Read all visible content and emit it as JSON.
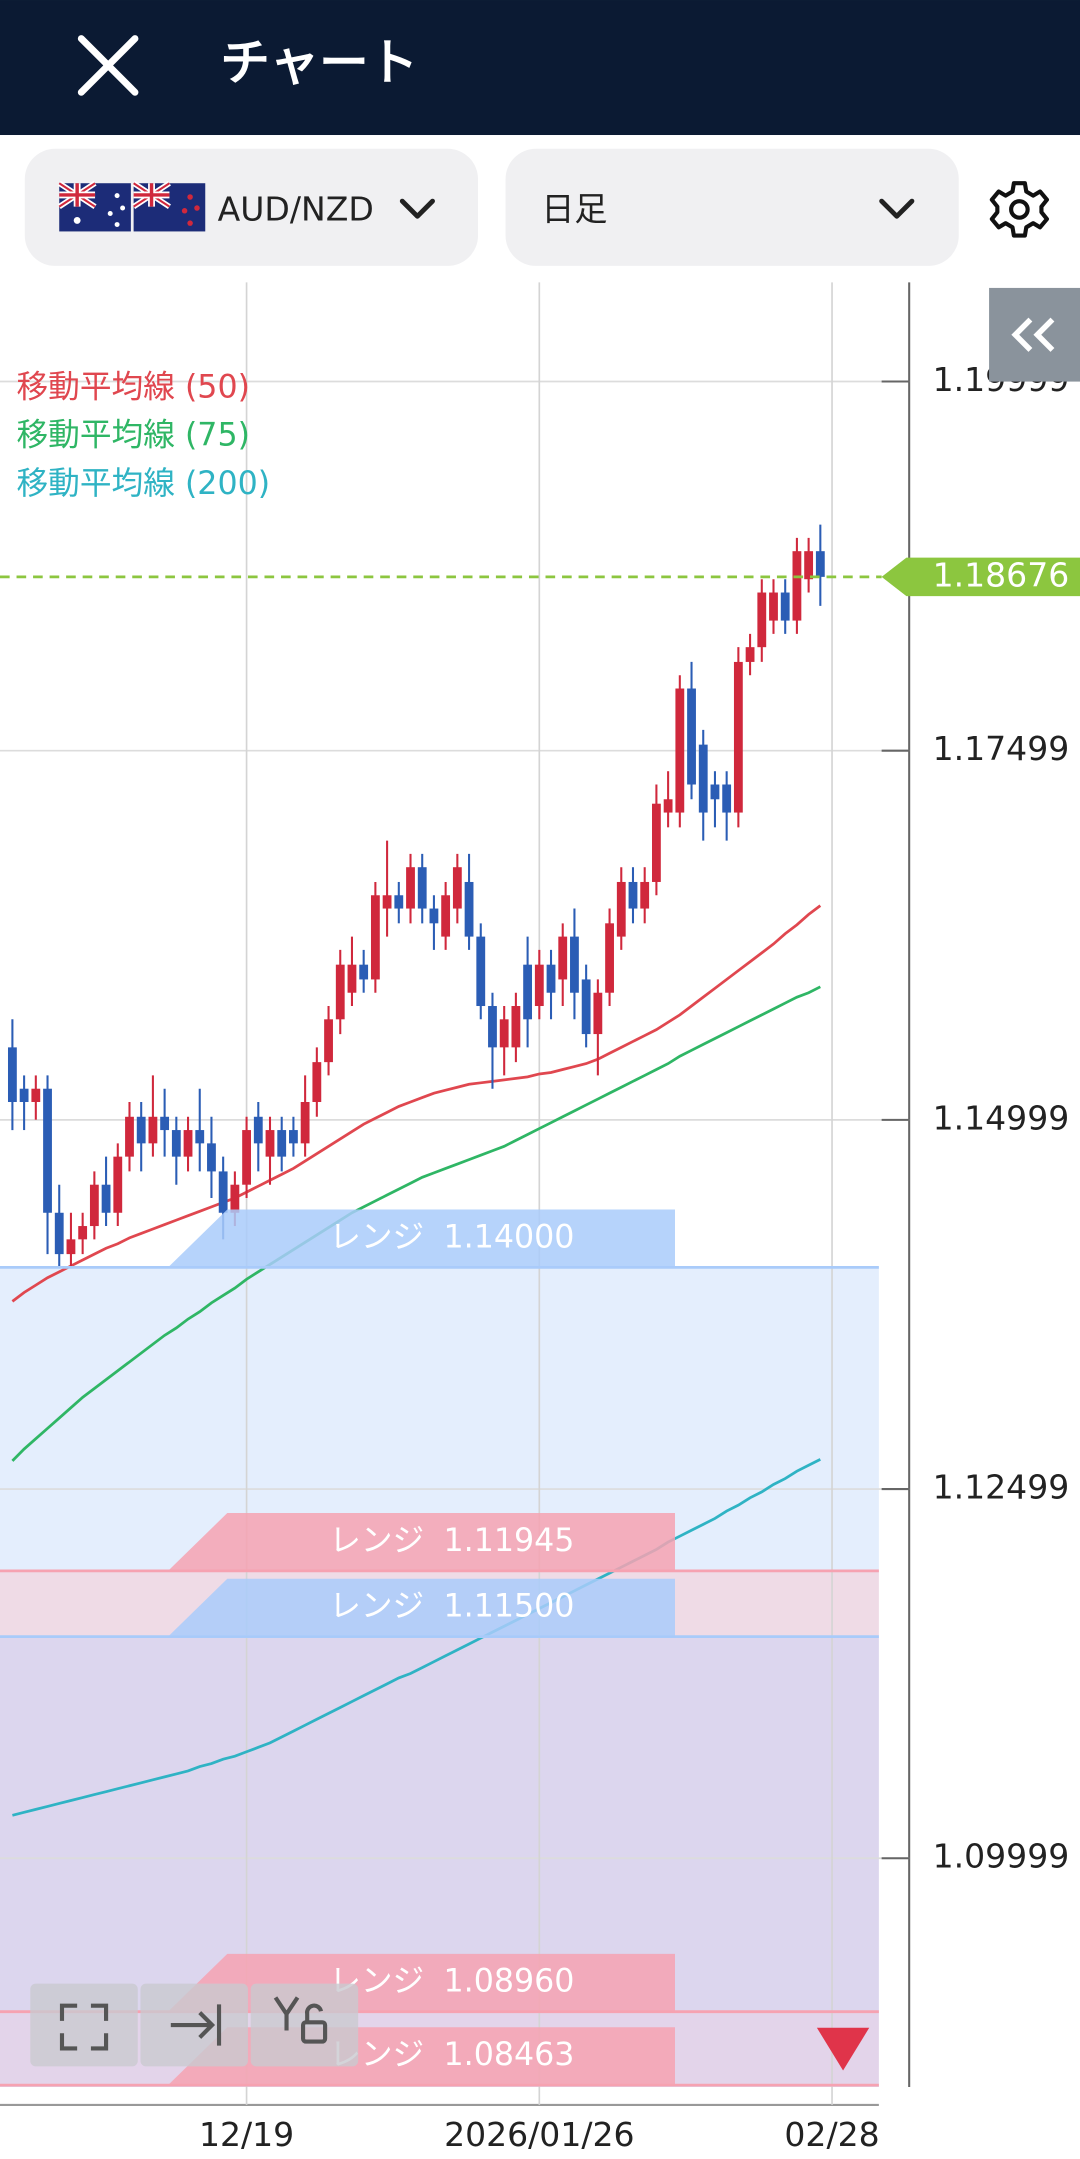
{
  "header": {
    "title": "チャート"
  },
  "toolbar": {
    "symbol": "AUD/NZD",
    "timeframe": "日足"
  },
  "chart_data": {
    "type": "candlestick",
    "categories": [
      null,
      null,
      null,
      null,
      null,
      null,
      null,
      null,
      null,
      null,
      null,
      null,
      null,
      null,
      null,
      null,
      null,
      null,
      null,
      null,
      "12/19",
      null,
      null,
      null,
      null,
      null,
      null,
      null,
      null,
      null,
      null,
      null,
      null,
      null,
      null,
      null,
      null,
      null,
      null,
      null,
      null,
      null,
      null,
      null,
      null,
      "2026/01/26",
      null,
      null,
      null,
      null,
      null,
      null,
      null,
      null,
      null,
      null,
      null,
      null,
      null,
      null,
      null,
      null,
      null,
      null,
      null,
      null,
      null,
      null,
      null,
      null,
      "02/28"
    ],
    "candles": {
      "up_color": "#d0283c",
      "down_color": "#2b5db5",
      "open": [
        1.1549,
        1.1521,
        1.1512,
        1.1521,
        1.1437,
        1.1409,
        1.1419,
        1.1428,
        1.1456,
        1.1437,
        1.1475,
        1.1502,
        1.1484,
        1.1502,
        1.1493,
        1.1475,
        1.1493,
        1.1484,
        1.1465,
        1.1437,
        1.1456,
        1.1502,
        1.1475,
        1.1493,
        1.1493,
        1.1484,
        1.1512,
        1.1539,
        1.1568,
        1.1586,
        1.1605,
        1.1595,
        1.1643,
        1.1652,
        1.1643,
        1.1671,
        1.1643,
        1.1624,
        1.1643,
        1.1661,
        1.1624,
        1.1577,
        1.1549,
        1.1549,
        1.1605,
        1.1577,
        1.1605,
        1.1595,
        1.1624,
        1.1595,
        1.1558,
        1.1586,
        1.1624,
        1.1661,
        1.1643,
        1.1661,
        1.1708,
        1.1708,
        1.1792,
        1.1754,
        1.1727,
        1.1727,
        1.1708,
        1.181,
        1.182,
        1.1838,
        1.1857,
        1.1838,
        1.1866,
        1.1885,
        null
      ],
      "high": [
        1.1568,
        1.153,
        1.153,
        1.153,
        1.1456,
        1.1437,
        1.1437,
        1.1465,
        1.1475,
        1.1484,
        1.1512,
        1.1512,
        1.153,
        1.1521,
        1.1502,
        1.1502,
        1.1521,
        1.1502,
        1.1475,
        1.1465,
        1.1502,
        1.1512,
        1.1502,
        1.1502,
        1.1502,
        1.153,
        1.1549,
        1.1577,
        1.1615,
        1.1624,
        1.1615,
        1.1661,
        1.1689,
        1.1661,
        1.168,
        1.168,
        1.1652,
        1.1661,
        1.168,
        1.168,
        1.1633,
        1.1586,
        1.1577,
        1.1586,
        1.1624,
        1.1615,
        1.1615,
        1.1633,
        1.1643,
        1.1605,
        1.1595,
        1.1643,
        1.1671,
        1.1671,
        1.1671,
        1.1727,
        1.1736,
        1.1801,
        1.181,
        1.1764,
        1.1736,
        1.1736,
        1.182,
        1.1829,
        1.1866,
        1.1866,
        1.1866,
        1.1894,
        1.1894,
        1.1903,
        null
      ],
      "low": [
        1.1493,
        1.1493,
        1.15,
        1.1409,
        1.14,
        1.14,
        1.1409,
        1.1419,
        1.1428,
        1.1428,
        1.1465,
        1.1465,
        1.1475,
        1.1475,
        1.1456,
        1.1465,
        1.1465,
        1.1447,
        1.1419,
        1.1428,
        1.1447,
        1.1465,
        1.1456,
        1.1465,
        1.1475,
        1.1475,
        1.1502,
        1.153,
        1.1558,
        1.1577,
        1.1586,
        1.1586,
        1.1624,
        1.1633,
        1.1633,
        1.1633,
        1.1615,
        1.1615,
        1.1633,
        1.1615,
        1.1568,
        1.1521,
        1.153,
        1.1539,
        1.1549,
        1.1568,
        1.1568,
        1.1577,
        1.1568,
        1.1549,
        1.153,
        1.1577,
        1.1615,
        1.1633,
        1.1633,
        1.1652,
        1.1698,
        1.1698,
        1.1717,
        1.1689,
        1.1698,
        1.1689,
        1.1698,
        1.1801,
        1.181,
        1.1829,
        1.1829,
        1.1829,
        1.1857,
        1.1848,
        null
      ],
      "close": [
        1.1512,
        1.1512,
        1.1521,
        1.1437,
        1.1409,
        1.1419,
        1.1428,
        1.1456,
        1.1437,
        1.1475,
        1.1502,
        1.1484,
        1.1502,
        1.1493,
        1.1475,
        1.1493,
        1.1484,
        1.1465,
        1.1437,
        1.1456,
        1.1493,
        1.1484,
        1.1493,
        1.1475,
        1.1484,
        1.1512,
        1.1539,
        1.1568,
        1.1605,
        1.1605,
        1.1595,
        1.1652,
        1.1652,
        1.1643,
        1.1671,
        1.1643,
        1.1633,
        1.1652,
        1.1671,
        1.1624,
        1.1577,
        1.1549,
        1.1568,
        1.1577,
        1.1568,
        1.1605,
        1.1586,
        1.1624,
        1.1586,
        1.1558,
        1.1586,
        1.1633,
        1.1661,
        1.1643,
        1.1661,
        1.1714,
        1.1717,
        1.1792,
        1.1727,
        1.1708,
        1.1717,
        1.1708,
        1.181,
        1.182,
        1.1857,
        1.1857,
        1.1838,
        1.1885,
        1.1885,
        1.18676,
        null
      ]
    },
    "lines": [
      {
        "name": "移動平均線 (50)",
        "color": "#e0474f",
        "values": [
          1.1377,
          1.1383,
          1.1388,
          1.1393,
          1.1397,
          1.1401,
          1.1405,
          1.1409,
          1.1413,
          1.1416,
          1.142,
          1.1423,
          1.1426,
          1.1429,
          1.1432,
          1.1435,
          1.1438,
          1.1441,
          1.1444,
          1.1447,
          1.1451,
          1.1455,
          1.1459,
          1.1463,
          1.1467,
          1.1472,
          1.1477,
          1.1482,
          1.1487,
          1.1492,
          1.1497,
          1.1501,
          1.1505,
          1.1509,
          1.1512,
          1.1515,
          1.1518,
          1.152,
          1.1522,
          1.1524,
          1.1525,
          1.1526,
          1.1527,
          1.1528,
          1.1529,
          1.1531,
          1.1532,
          1.1534,
          1.1536,
          1.1538,
          1.1541,
          1.1545,
          1.1549,
          1.1553,
          1.1557,
          1.1561,
          1.1566,
          1.1571,
          1.1577,
          1.1583,
          1.1589,
          1.1595,
          1.1601,
          1.1607,
          1.1613,
          1.1619,
          1.1626,
          1.1632,
          1.1639,
          1.1645,
          null
        ]
      },
      {
        "name": "移動平均線 (75)",
        "color": "#2fb665",
        "values": [
          1.1269,
          1.1277,
          1.1284,
          1.1291,
          1.1298,
          1.1305,
          1.1312,
          1.1318,
          1.1324,
          1.133,
          1.1336,
          1.1342,
          1.1348,
          1.1354,
          1.1359,
          1.1365,
          1.137,
          1.1376,
          1.1381,
          1.1386,
          1.1392,
          1.1397,
          1.1402,
          1.1407,
          1.1412,
          1.1417,
          1.1422,
          1.1427,
          1.1432,
          1.1437,
          1.1441,
          1.1445,
          1.1449,
          1.1453,
          1.1457,
          1.1461,
          1.1464,
          1.1467,
          1.147,
          1.1473,
          1.1476,
          1.1479,
          1.1482,
          1.1486,
          1.149,
          1.1494,
          1.1498,
          1.1502,
          1.1506,
          1.151,
          1.1514,
          1.1518,
          1.1522,
          1.1526,
          1.153,
          1.1534,
          1.1538,
          1.1543,
          1.1547,
          1.1551,
          1.1555,
          1.1559,
          1.1563,
          1.1567,
          1.1571,
          1.1575,
          1.1579,
          1.1583,
          1.1586,
          1.159,
          null
        ]
      },
      {
        "name": "移動平均線 (200)",
        "color": "#2fb3c4",
        "values": [
          1.1029,
          1.1031,
          1.1033,
          1.1035,
          1.1037,
          1.1039,
          1.1041,
          1.1043,
          1.1045,
          1.1047,
          1.1049,
          1.1051,
          1.1053,
          1.1055,
          1.1057,
          1.1059,
          1.1062,
          1.1064,
          1.1067,
          1.1069,
          1.1072,
          1.1075,
          1.1078,
          1.1082,
          1.1086,
          1.109,
          1.1094,
          1.1098,
          1.1102,
          1.1106,
          1.111,
          1.1114,
          1.1118,
          1.1122,
          1.1125,
          1.1129,
          1.1133,
          1.1137,
          1.1141,
          1.1145,
          1.1149,
          1.1153,
          1.1157,
          1.1161,
          1.1165,
          1.1169,
          1.1173,
          1.1177,
          1.1181,
          1.1185,
          1.1189,
          1.1193,
          1.1197,
          1.1201,
          1.1205,
          1.1209,
          1.1214,
          1.1218,
          1.1222,
          1.1226,
          1.123,
          1.1235,
          1.1239,
          1.1244,
          1.1248,
          1.1253,
          1.1257,
          1.1262,
          1.1266,
          1.127,
          null
        ]
      }
    ],
    "ranges": [
      {
        "name": "レンジ",
        "level": {
          "value": 1.14,
          "label": "1.14000"
        },
        "color": "#a9cbfa",
        "fill": "#e4eefd"
      },
      {
        "name": "レンジ",
        "level": {
          "value": 1.11945,
          "label": "1.11945"
        },
        "color": "#f6a2b1",
        "fill": "#efdbe6"
      },
      {
        "name": "レンジ",
        "level": {
          "value": 1.115,
          "label": "1.11500"
        },
        "color": "#a9cbfa",
        "fill": "#dcd6ee"
      },
      {
        "name": "レンジ",
        "level": {
          "value": 1.0896,
          "label": "1.08960"
        },
        "color": "#f6a2b1",
        "fill": "#e3d4ea"
      },
      {
        "name": "レンジ",
        "level": {
          "value": 1.08463,
          "label": "1.08463"
        },
        "color": "#f6a2b1",
        "fill": "#dcd6ee"
      }
    ],
    "current_price": 1.18676,
    "current_color": "#8cc63f",
    "ylim": [
      1.0845,
      1.2067
    ],
    "yticks": [
      1.19999,
      1.17499,
      1.14999,
      1.12499,
      1.09999
    ],
    "grid": true
  }
}
